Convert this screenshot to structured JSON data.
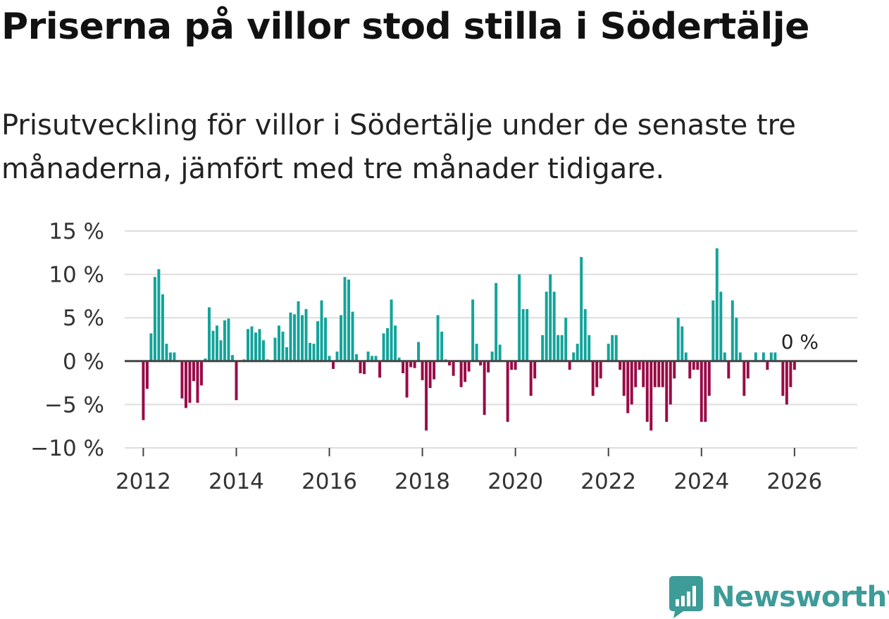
{
  "header": {
    "title": "Priserna på villor stod stilla i Södertälje",
    "subtitle": "Prisutveckling för villor i Södertälje under de senaste tre månaderna, jämfört med tre månader tidigare."
  },
  "brand": {
    "name": "Newsworthy",
    "color": "#3d9b98"
  },
  "chart_data": {
    "type": "bar",
    "title": "Priserna på villor stod stilla i Södertälje",
    "subtitle": "Prisutveckling för villor i Södertälje under de senaste tre månaderna, jämfört med tre månader tidigare.",
    "xlabel": "",
    "ylabel": "",
    "unit": "%",
    "start": "2012-01",
    "frequency": "monthly",
    "xlim": [
      2011.6,
      2027.35
    ],
    "ylim": [
      -10,
      15
    ],
    "yticks": [
      15,
      10,
      5,
      0,
      -5,
      -10
    ],
    "ytick_labels": [
      "15 %",
      "10 %",
      "5 %",
      "0 %",
      "−5 %",
      "−10 %"
    ],
    "xticks": [
      2012,
      2014,
      2016,
      2018,
      2020,
      2022,
      2024,
      2026
    ],
    "xtick_labels": [
      "2012",
      "2014",
      "2016",
      "2018",
      "2020",
      "2022",
      "2024",
      "2026"
    ],
    "grid": true,
    "colors": {
      "positive": "#13a39a",
      "negative": "#990a46",
      "zero_line": "#444444",
      "grid": "#dddddd"
    },
    "last_value_label": "0 %",
    "values": [
      -6.8,
      -3.2,
      3.2,
      9.7,
      10.6,
      7.7,
      2.0,
      1.0,
      1.0,
      0.0,
      -4.3,
      -5.4,
      -4.8,
      -2.3,
      -4.8,
      -2.8,
      0.3,
      6.2,
      3.5,
      4.1,
      2.4,
      4.7,
      4.9,
      0.7,
      -4.5,
      0.0,
      0.2,
      3.7,
      4.0,
      3.3,
      3.7,
      2.4,
      0.2,
      0.1,
      2.7,
      4.1,
      3.4,
      1.6,
      5.6,
      5.4,
      6.9,
      5.3,
      6.0,
      2.1,
      2.0,
      4.6,
      7.0,
      5.0,
      0.6,
      -0.9,
      1.1,
      5.3,
      9.7,
      9.4,
      5.7,
      0.8,
      -1.4,
      -1.5,
      1.1,
      0.6,
      0.6,
      -1.9,
      3.2,
      3.8,
      7.1,
      4.1,
      0.4,
      -1.4,
      -4.2,
      -0.7,
      -0.8,
      2.2,
      -2.2,
      -8.0,
      -3.1,
      -2.1,
      5.3,
      3.4,
      0.2,
      -0.5,
      -1.7,
      0.0,
      -3.0,
      -2.4,
      -1.2,
      7.1,
      2.0,
      -0.5,
      -6.2,
      -1.3,
      1.1,
      9.0,
      1.9,
      0.0,
      -7.0,
      -1.0,
      -1.0,
      10.0,
      6.0,
      6.0,
      -4.0,
      -2.0,
      0.0,
      3.0,
      8.0,
      10.0,
      8.0,
      3.0,
      3.0,
      5.0,
      -1.0,
      1.0,
      2.0,
      12.0,
      6.0,
      3.0,
      -4.0,
      -3.0,
      -2.0,
      0.0,
      2.0,
      3.0,
      3.0,
      -1.0,
      -4.0,
      -6.0,
      -5.0,
      -3.0,
      -1.0,
      -3.0,
      -7.0,
      -8.0,
      -3.0,
      -3.0,
      -3.0,
      -7.0,
      -5.0,
      -2.0,
      5.0,
      4.0,
      1.0,
      -2.0,
      -1.0,
      -1.0,
      -7.0,
      -7.0,
      -4.0,
      7.0,
      13.0,
      8.0,
      1.0,
      -2.0,
      7.0,
      5.0,
      1.0,
      -4.0,
      -2.0,
      0.0,
      1.0,
      0.0,
      1.0,
      -1.0,
      1.0,
      1.0,
      0.0,
      -4.0,
      -5.0,
      -3.0,
      -1.0,
      0.0
    ]
  }
}
